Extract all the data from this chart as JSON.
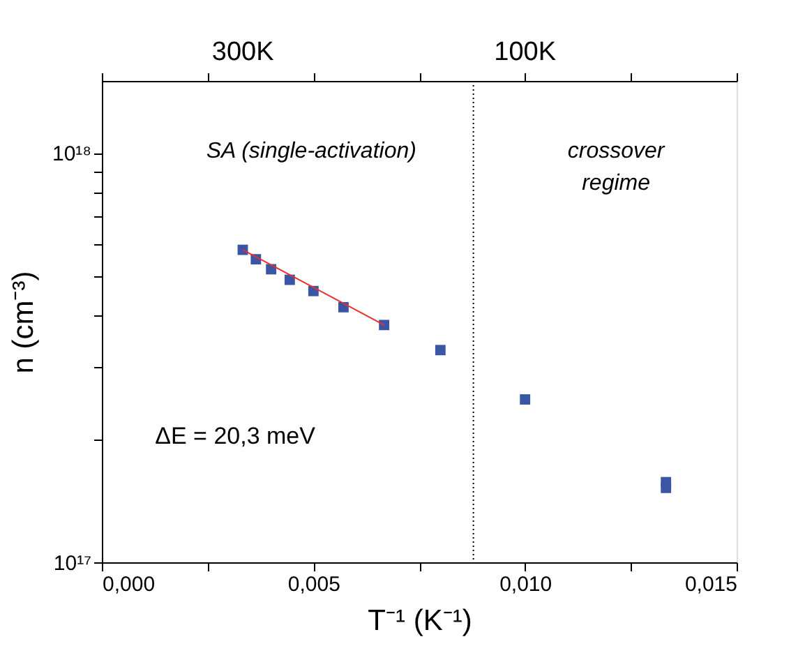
{
  "chart_data": {
    "type": "scatter",
    "xlabel": "T⁻¹ (K⁻¹)",
    "ylabel": "n (cm⁻³)",
    "log": "y",
    "grid": false,
    "marker": "square",
    "xlim": [
      0,
      0.015
    ],
    "xticks": [
      {
        "value": 0,
        "label": "0,000"
      },
      {
        "value": 0.0025,
        "label": null
      },
      {
        "value": 0.005,
        "label": "0,005"
      },
      {
        "value": 0.0075,
        "label": null
      },
      {
        "value": 0.01,
        "label": "0,010"
      },
      {
        "value": 0.0125,
        "label": null
      },
      {
        "value": 0.015,
        "label": "0,015"
      }
    ],
    "ylim": [
      1e+17,
      1.5e+18
    ],
    "yticks": [
      {
        "value": 1e+17,
        "label": "10¹⁷"
      },
      {
        "value": 2e+17,
        "label": null
      },
      {
        "value": 3e+17,
        "label": null
      },
      {
        "value": 4e+17,
        "label": null
      },
      {
        "value": 5e+17,
        "label": null
      },
      {
        "value": 6e+17,
        "label": null
      },
      {
        "value": 7e+17,
        "label": null
      },
      {
        "value": 8e+17,
        "label": null
      },
      {
        "value": 9e+17,
        "label": null
      },
      {
        "value": 1e+18,
        "label": "10¹⁸"
      }
    ],
    "series": [
      {
        "color": "#3a55a4",
        "x": [
          0.00333,
          0.00364,
          0.004,
          0.00444,
          0.005,
          0.00571,
          0.00667,
          0.008,
          0.01,
          0.01333,
          0.01333
        ],
        "values": [
          5.8e+17,
          5.5e+17,
          5.2e+17,
          4.9e+17,
          4.6e+17,
          4.2e+17,
          3.8e+17,
          3.3e+17,
          2.5e+17,
          1.57e+17,
          1.52e+17
        ]
      },
      {
        "type": "line",
        "color": "#e8302a",
        "line_style": "solid",
        "marker": "none",
        "x": [
          0.00333,
          0.00667
        ],
        "values": [
          5.8e+17,
          3.8e+17
        ]
      }
    ],
    "ref_lines": [
      {
        "axis": "x",
        "value": 0.00878,
        "line_style": "dotted",
        "color": "#000000"
      }
    ],
    "annotations": [
      "SA (single-activation)",
      "crossover\nregime",
      "ΔE = 20,3 meV",
      "300K",
      "100K"
    ]
  }
}
